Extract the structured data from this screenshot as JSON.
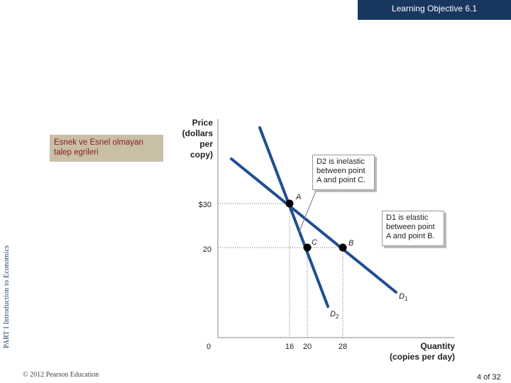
{
  "header": {
    "learning_objective": "Learning Objective  6.1"
  },
  "sidebar": {
    "part_label": "PART I  Introduction to  Economics"
  },
  "title": {
    "line1": "Esnek ve Esnel olmayan",
    "line2": "talep egrileri"
  },
  "footer": {
    "copyright": "© 2012 Pearson Education",
    "page": "4 of 32"
  },
  "chart_data": {
    "type": "line",
    "ylabel_lines": [
      "Price",
      "(dollars",
      "per",
      "copy)"
    ],
    "xlabel_lines": [
      "Quantity",
      "(copies per day)"
    ],
    "ytick_labels": [
      "$30",
      "20"
    ],
    "xtick_labels": [
      "0",
      "16",
      "20",
      "28"
    ],
    "points": [
      {
        "label": "A",
        "x": 16,
        "y": 30
      },
      {
        "label": "C",
        "x": 20,
        "y": 20
      },
      {
        "label": "B",
        "x": 28,
        "y": 20
      }
    ],
    "series": [
      {
        "name": "D1",
        "label_main": "D",
        "label_sub": "1"
      },
      {
        "name": "D2",
        "label_main": "D",
        "label_sub": "2"
      }
    ],
    "annotations": {
      "d2_note": [
        "D2 is inelastic",
        "between point",
        "A and point C."
      ],
      "d1_note": [
        "D1 is elastic",
        "between point",
        "A and point B."
      ]
    },
    "colors": {
      "curve": "#1f4e91",
      "banner": "#17375e",
      "title_bg": "#c9bfa7",
      "title_text": "#8b1a1a"
    }
  }
}
